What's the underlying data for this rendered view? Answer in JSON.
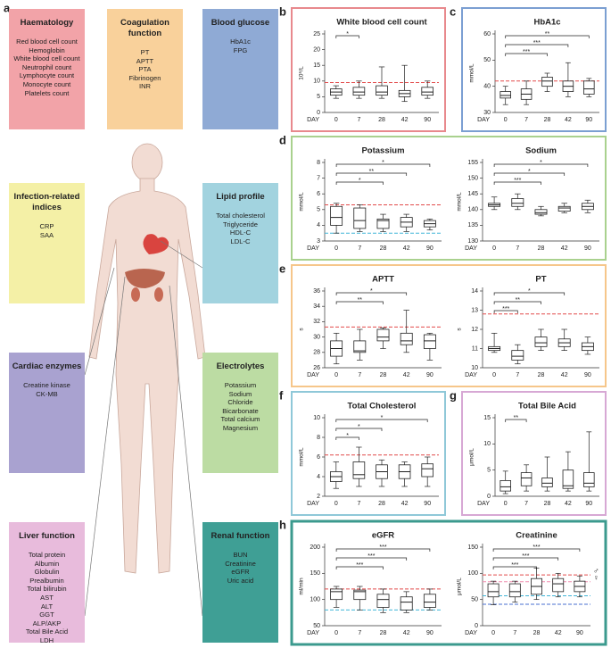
{
  "panel_a": {
    "label": "a",
    "groups": [
      {
        "title": "Haematology",
        "color": "#f2a3a8",
        "items": [
          "Red blood cell count",
          "Hemoglobin",
          "White blood cell count",
          "Neutrophil count",
          "Lymphocyte count",
          "Monocyte count",
          "Platelets count"
        ]
      },
      {
        "title": "Coagulation function",
        "color": "#f9d19b",
        "items": [
          "PT",
          "APTT",
          "PTA",
          "Fibrinogen",
          "INR"
        ]
      },
      {
        "title": "Blood glucose",
        "color": "#8faad5",
        "items": [
          "HbA1c",
          "FPG"
        ]
      },
      {
        "title": "Infection-related indices",
        "color": "#f4f0a6",
        "items": [
          "CRP",
          "SAA"
        ]
      },
      {
        "title": "Lipid profile",
        "color": "#a2d3df",
        "items": [
          "Total cholesterol",
          "Triglyceride",
          "HDL-C",
          "LDL-C"
        ]
      },
      {
        "title": "Cardiac enzymes",
        "color": "#a9a2d0",
        "items": [
          "Creatine kinase",
          "CK-MB"
        ]
      },
      {
        "title": "Electrolytes",
        "color": "#bcdca3",
        "items": [
          "Potassium",
          "Sodium",
          "Chloride",
          "Bicarbonate",
          "Total calcium",
          "Magnesium"
        ]
      },
      {
        "title": "Liver function",
        "color": "#e8bbdc",
        "items": [
          "Total protein",
          "Albumin",
          "Globulin",
          "Prealbumin",
          "Total bilirubin",
          "AST",
          "ALT",
          "GGT",
          "ALP/AKP",
          "Total Bile Acid",
          "LDH"
        ]
      },
      {
        "title": "Renal function",
        "color": "#3f9f95",
        "items": [
          "BUN",
          "Creatinine",
          "eGFR",
          "Uric acid"
        ]
      }
    ]
  },
  "chart_data": [
    {
      "panel": "b",
      "frame_color": "#e8898d",
      "type": "box",
      "title": "White blood cell count",
      "ylabel": "10⁹/L",
      "xlabel": "DAY",
      "categories": [
        "0",
        "7",
        "28",
        "42",
        "90"
      ],
      "boxes": [
        {
          "min": 4.5,
          "q1": 5.5,
          "median": 6.5,
          "q3": 7.5,
          "max": 8.5
        },
        {
          "min": 4.5,
          "q1": 5.5,
          "median": 6.5,
          "q3": 8,
          "max": 10
        },
        {
          "min": 4.5,
          "q1": 5.5,
          "median": 6.5,
          "q3": 8.5,
          "max": 14.5
        },
        {
          "min": 3.5,
          "q1": 5,
          "median": 6,
          "q3": 7,
          "max": 15
        },
        {
          "min": 4.5,
          "q1": 5.5,
          "median": 6.5,
          "q3": 8,
          "max": 10
        }
      ],
      "ylim": [
        0,
        25
      ],
      "yticks": [
        0,
        5,
        10,
        15,
        20,
        25
      ],
      "ref_lines": [
        {
          "value": 9.5,
          "color": "#e24a4a"
        }
      ],
      "significance": [
        {
          "from": "0",
          "to": "7",
          "label": "*"
        }
      ]
    },
    {
      "panel": "c",
      "frame_color": "#7b9fd2",
      "type": "box",
      "title": "HbA1c",
      "ylabel": "mmol/L",
      "xlabel": "DAY",
      "categories": [
        "0",
        "7",
        "28",
        "42",
        "90"
      ],
      "boxes": [
        {
          "min": 33,
          "q1": 35.5,
          "median": 36.5,
          "q3": 38,
          "max": 40
        },
        {
          "min": 33,
          "q1": 35,
          "median": 37,
          "q3": 39,
          "max": 42
        },
        {
          "min": 38,
          "q1": 40,
          "median": 42,
          "q3": 43.5,
          "max": 45
        },
        {
          "min": 36,
          "q1": 38,
          "median": 40,
          "q3": 42,
          "max": 49
        },
        {
          "min": 36,
          "q1": 37,
          "median": 39,
          "q3": 42,
          "max": 43
        }
      ],
      "ylim": [
        30,
        60
      ],
      "yticks": [
        30,
        40,
        50,
        60
      ],
      "ref_lines": [
        {
          "value": 42,
          "color": "#e24a4a"
        }
      ],
      "significance": [
        {
          "from": "0",
          "to": "28",
          "label": "***"
        },
        {
          "from": "0",
          "to": "42",
          "label": "***"
        },
        {
          "from": "0",
          "to": "90",
          "label": "**"
        }
      ]
    },
    {
      "panel": "d",
      "frame_color": "#a9d18e",
      "type": "box",
      "title": "Potassium",
      "ylabel": "mmol/L",
      "xlabel": "DAY",
      "categories": [
        "0",
        "7",
        "28",
        "42",
        "90"
      ],
      "boxes": [
        {
          "min": 3.5,
          "q1": 4.0,
          "median": 4.5,
          "q3": 5.2,
          "max": 5.4
        },
        {
          "min": 3.6,
          "q1": 3.8,
          "median": 4.3,
          "q3": 5.1,
          "max": 5.3
        },
        {
          "min": 3.6,
          "q1": 3.8,
          "median": 4.3,
          "q3": 4.4,
          "max": 4.7
        },
        {
          "min": 3.6,
          "q1": 3.9,
          "median": 4.2,
          "q3": 4.5,
          "max": 4.7
        },
        {
          "min": 3.7,
          "q1": 3.9,
          "median": 4.1,
          "q3": 4.3,
          "max": 4.4
        }
      ],
      "ylim": [
        3,
        8
      ],
      "yticks": [
        3,
        4,
        5,
        6,
        7,
        8
      ],
      "ref_lines": [
        {
          "value": 5.3,
          "color": "#e24a4a"
        },
        {
          "value": 3.5,
          "color": "#41b6d8"
        }
      ],
      "significance": [
        {
          "from": "0",
          "to": "28",
          "label": "*"
        },
        {
          "from": "0",
          "to": "42",
          "label": "**"
        },
        {
          "from": "0",
          "to": "90",
          "label": "*"
        }
      ]
    },
    {
      "type": "box",
      "title": "Sodium",
      "ylabel": "mmol/L",
      "xlabel": "DAY",
      "categories": [
        "0",
        "7",
        "28",
        "42",
        "90"
      ],
      "boxes": [
        {
          "min": 140,
          "q1": 141,
          "median": 141.5,
          "q3": 142,
          "max": 144
        },
        {
          "min": 140,
          "q1": 141,
          "median": 142,
          "q3": 143.5,
          "max": 145
        },
        {
          "min": 138,
          "q1": 138.5,
          "median": 139,
          "q3": 140,
          "max": 141
        },
        {
          "min": 139,
          "q1": 139.5,
          "median": 140.5,
          "q3": 141,
          "max": 142
        },
        {
          "min": 139,
          "q1": 140,
          "median": 141,
          "q3": 142,
          "max": 143
        }
      ],
      "ylim": [
        130,
        155
      ],
      "yticks": [
        130,
        135,
        140,
        145,
        150,
        155
      ],
      "ref_lines": [],
      "significance": [
        {
          "from": "0",
          "to": "28",
          "label": "***"
        },
        {
          "from": "0",
          "to": "42",
          "label": "*"
        },
        {
          "from": "0",
          "to": "90",
          "label": "*"
        }
      ]
    },
    {
      "panel": "e",
      "frame_color": "#f6c68a",
      "type": "box",
      "title": "APTT",
      "ylabel": "s",
      "xlabel": "DAY",
      "categories": [
        "0",
        "7",
        "28",
        "42",
        "90"
      ],
      "boxes": [
        {
          "min": 26.5,
          "q1": 27.5,
          "median": 28.5,
          "q3": 29.5,
          "max": 30.5
        },
        {
          "min": 27,
          "q1": 28,
          "median": 28.2,
          "q3": 29.5,
          "max": 31
        },
        {
          "min": 28.5,
          "q1": 29.5,
          "median": 30,
          "q3": 31,
          "max": 31.2
        },
        {
          "min": 28,
          "q1": 29,
          "median": 29.5,
          "q3": 30.5,
          "max": 33.5
        },
        {
          "min": 27,
          "q1": 28.5,
          "median": 29.5,
          "q3": 30.3,
          "max": 30.5
        }
      ],
      "ylim": [
        26,
        36
      ],
      "yticks": [
        26,
        28,
        30,
        32,
        34,
        36
      ],
      "ref_lines": [
        {
          "value": 31.3,
          "color": "#e24a4a"
        }
      ],
      "significance": [
        {
          "from": "0",
          "to": "28",
          "label": "**"
        },
        {
          "from": "0",
          "to": "42",
          "label": "*"
        }
      ]
    },
    {
      "type": "box",
      "title": "PT",
      "ylabel": "s",
      "xlabel": "DAY",
      "categories": [
        "0",
        "7",
        "28",
        "42",
        "90"
      ],
      "boxes": [
        {
          "min": 10.8,
          "q1": 10.9,
          "median": 11.0,
          "q3": 11.1,
          "max": 11.8
        },
        {
          "min": 10.2,
          "q1": 10.4,
          "median": 10.6,
          "q3": 10.9,
          "max": 11.2
        },
        {
          "min": 10.9,
          "q1": 11.1,
          "median": 11.3,
          "q3": 11.6,
          "max": 12
        },
        {
          "min": 10.9,
          "q1": 11.1,
          "median": 11.3,
          "q3": 11.5,
          "max": 12
        },
        {
          "min": 10.7,
          "q1": 10.9,
          "median": 11.1,
          "q3": 11.3,
          "max": 11.6
        }
      ],
      "ylim": [
        10,
        14
      ],
      "yticks": [
        10,
        11,
        12,
        13,
        14
      ],
      "ref_lines": [
        {
          "value": 12.8,
          "color": "#e24a4a"
        }
      ],
      "significance": [
        {
          "from": "0",
          "to": "7",
          "label": "***"
        },
        {
          "from": "0",
          "to": "28",
          "label": "**"
        },
        {
          "from": "0",
          "to": "42",
          "label": "*"
        }
      ]
    },
    {
      "panel": "f",
      "frame_color": "#8fc8d8",
      "type": "box",
      "title": "Total Cholesterol",
      "ylabel": "mmol/L",
      "xlabel": "DAY",
      "categories": [
        "0",
        "7",
        "28",
        "42",
        "90"
      ],
      "boxes": [
        {
          "min": 2.8,
          "q1": 3.5,
          "median": 4,
          "q3": 4.5,
          "max": 5.5
        },
        {
          "min": 3,
          "q1": 3.8,
          "median": 4.2,
          "q3": 5.5,
          "max": 7
        },
        {
          "min": 3,
          "q1": 3.8,
          "median": 4.5,
          "q3": 5.2,
          "max": 5.7
        },
        {
          "min": 3,
          "q1": 3.8,
          "median": 4.5,
          "q3": 5.2,
          "max": 5.5
        },
        {
          "min": 3,
          "q1": 4,
          "median": 4.8,
          "q3": 5.3,
          "max": 6
        }
      ],
      "ylim": [
        2,
        10
      ],
      "yticks": [
        2,
        4,
        6,
        8,
        10
      ],
      "ref_lines": [
        {
          "value": 6.2,
          "color": "#e24a4a"
        }
      ],
      "significance": [
        {
          "from": "0",
          "to": "7",
          "label": "*"
        },
        {
          "from": "0",
          "to": "28",
          "label": "*"
        },
        {
          "from": "0",
          "to": "90",
          "label": "*"
        }
      ]
    },
    {
      "panel": "g",
      "frame_color": "#d7a8d4",
      "type": "box",
      "title": "Total Bile Acid",
      "ylabel": "μmol/L",
      "xlabel": "DAY",
      "categories": [
        "0",
        "7",
        "28",
        "42",
        "90"
      ],
      "boxes": [
        {
          "min": 0.5,
          "q1": 1,
          "median": 1.8,
          "q3": 3,
          "max": 4.8
        },
        {
          "min": 1,
          "q1": 2,
          "median": 3.5,
          "q3": 4.5,
          "max": 6
        },
        {
          "min": 1,
          "q1": 1.8,
          "median": 2.5,
          "q3": 3.5,
          "max": 7.5
        },
        {
          "min": 1,
          "q1": 1.5,
          "median": 2,
          "q3": 5,
          "max": 8.5
        },
        {
          "min": 1,
          "q1": 1.8,
          "median": 2.5,
          "q3": 4.5,
          "max": 12.3
        }
      ],
      "ylim": [
        0,
        15
      ],
      "yticks": [
        0,
        5,
        10,
        15
      ],
      "ref_lines": [],
      "significance": [
        {
          "from": "0",
          "to": "7",
          "label": "**"
        }
      ]
    },
    {
      "panel": "h",
      "frame_color": "#3b9a8e",
      "type": "box",
      "title": "eGFR",
      "ylabel": "ml/min",
      "xlabel": "DAY",
      "categories": [
        "0",
        "7",
        "28",
        "42",
        "90"
      ],
      "boxes": [
        {
          "min": 85,
          "q1": 100,
          "median": 115,
          "q3": 120,
          "max": 125
        },
        {
          "min": 80,
          "q1": 100,
          "median": 115,
          "q3": 118,
          "max": 125
        },
        {
          "min": 75,
          "q1": 85,
          "median": 100,
          "q3": 110,
          "max": 120
        },
        {
          "min": 75,
          "q1": 80,
          "median": 95,
          "q3": 105,
          "max": 115
        },
        {
          "min": 80,
          "q1": 85,
          "median": 95,
          "q3": 110,
          "max": 120
        }
      ],
      "ylim": [
        50,
        200
      ],
      "yticks": [
        50,
        100,
        150,
        200
      ],
      "ref_lines": [
        {
          "value": 120,
          "color": "#e24a4a"
        },
        {
          "value": 80,
          "color": "#41b6d8"
        }
      ],
      "significance": [
        {
          "from": "0",
          "to": "28",
          "label": "***"
        },
        {
          "from": "0",
          "to": "42",
          "label": "***"
        },
        {
          "from": "0",
          "to": "90",
          "label": "***"
        }
      ]
    },
    {
      "type": "box",
      "title": "Creatinine",
      "ylabel": "μmol/L",
      "xlabel": "DAY",
      "categories": [
        "0",
        "7",
        "28",
        "42",
        "90"
      ],
      "boxes": [
        {
          "min": 40,
          "q1": 55,
          "median": 65,
          "q3": 80,
          "max": 85
        },
        {
          "min": 45,
          "q1": 55,
          "median": 65,
          "q3": 80,
          "max": 85
        },
        {
          "min": 50,
          "q1": 60,
          "median": 75,
          "q3": 90,
          "max": 110
        },
        {
          "min": 55,
          "q1": 65,
          "median": 80,
          "q3": 90,
          "max": 100
        },
        {
          "min": 55,
          "q1": 65,
          "median": 75,
          "q3": 85,
          "max": 95
        }
      ],
      "ylim": [
        0,
        150
      ],
      "yticks": [
        0,
        50,
        100,
        150
      ],
      "ref_lines": [
        {
          "value": 97,
          "color": "#e24a4a"
        },
        {
          "value": 84,
          "color": "#f08fb0"
        },
        {
          "value": 57,
          "color": "#41b6d8"
        },
        {
          "value": 41,
          "color": "#4a6fd1"
        }
      ],
      "annotations": [
        "♂",
        "♀"
      ],
      "significance": [
        {
          "from": "0",
          "to": "28",
          "label": "***"
        },
        {
          "from": "0",
          "to": "42",
          "label": "***"
        },
        {
          "from": "0",
          "to": "90",
          "label": "***"
        }
      ]
    }
  ]
}
